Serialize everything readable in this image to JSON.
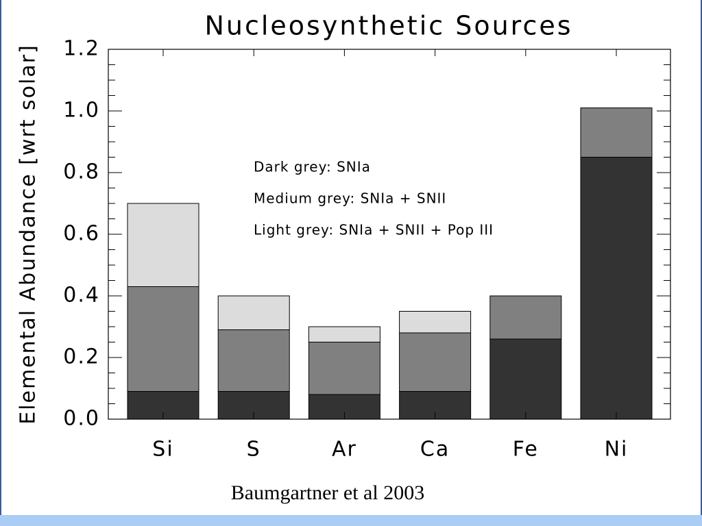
{
  "chart_data": {
    "type": "stacked_bar",
    "title": "Nucleosynthetic Sources",
    "y_label": "Elemental Abundance [wrt solar]",
    "source": "Baumgartner et al 2003",
    "categories": [
      "Si",
      "S",
      "Ar",
      "Ca",
      "Fe",
      "Ni"
    ],
    "series": [
      {
        "name": "Dark grey: SNIa",
        "color": "#333333",
        "values": [
          0.09,
          0.09,
          0.08,
          0.09,
          0.26,
          0.85
        ]
      },
      {
        "name": "Medium grey: SNIa + SNII",
        "color": "#808080",
        "values": [
          0.34,
          0.2,
          0.17,
          0.19,
          0.14,
          0.16
        ]
      },
      {
        "name": "Light grey: SNIa + SNII + Pop III",
        "color": "#dcdcdc",
        "values": [
          0.27,
          0.11,
          0.05,
          0.07,
          0,
          0
        ]
      }
    ],
    "ylim": [
      0,
      1.2
    ],
    "yticks": [
      {
        "value": 0,
        "label": "0.0"
      },
      0.2,
      0.4,
      0.6,
      0.8,
      {
        "value": 1,
        "label": "1.0"
      },
      1.2
    ]
  }
}
